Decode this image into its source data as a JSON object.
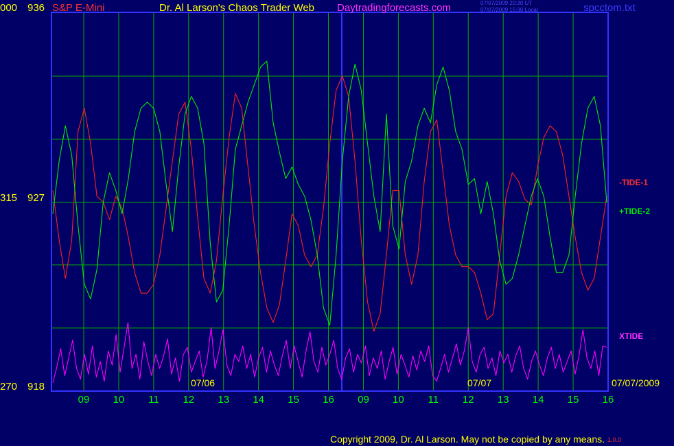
{
  "header": {
    "axis_top_left": "000",
    "price_top": "936",
    "instrument": "S&P E-Mini",
    "author": "Dr. Al Larson's Chaos Trader Web",
    "site": "Daytradingforecasts.com",
    "timestamp_ut": "07/07/2009 20:30 UT",
    "timestamp_local": "07/07/2009 15:30 Local",
    "filename": "spcctom.txt"
  },
  "left_axis": {
    "mid_label": "315",
    "mid_price": "927",
    "bottom_label": "270",
    "bottom_price": "918"
  },
  "right_labels": {
    "tide1": "-TIDE-1",
    "tide2": "+TIDE-2",
    "xtide": "XTIDE"
  },
  "footer": {
    "copyright": "Copyright 2009, Dr. Al Larson. May not be copied by any means.",
    "stamp": "1.0.0"
  },
  "colors": {
    "background": "#000066",
    "grid": "#00aa00",
    "tide1": "#ff2020",
    "tide2": "#00ee00",
    "xtide": "#ff00ff",
    "session_divider": "#3333ff",
    "axis_text": "#ffff00",
    "hour_labels": "#00ff00"
  },
  "chart_data": {
    "type": "line",
    "x_hour_labels": [
      "09",
      "10",
      "11",
      "12",
      "13",
      "14",
      "15",
      "16",
      "09",
      "10",
      "11",
      "12",
      "13",
      "14",
      "15",
      "16"
    ],
    "date_labels": [
      "07/06",
      "07/07",
      "07/07/2009"
    ],
    "y_price_ticks": [
      936,
      927,
      918
    ],
    "ylim": [
      918,
      936
    ],
    "grid": true,
    "series": [
      {
        "name": "-TIDE-1",
        "color": "#ff2020",
        "values": [
          0.52,
          0.35,
          0.22,
          0.35,
          0.72,
          0.8,
          0.68,
          0.5,
          0.48,
          0.42,
          0.5,
          0.46,
          0.36,
          0.24,
          0.17,
          0.17,
          0.2,
          0.3,
          0.46,
          0.62,
          0.78,
          0.82,
          0.66,
          0.43,
          0.22,
          0.17,
          0.28,
          0.5,
          0.7,
          0.85,
          0.8,
          0.6,
          0.4,
          0.24,
          0.12,
          0.07,
          0.13,
          0.28,
          0.44,
          0.4,
          0.3,
          0.26,
          0.3,
          0.46,
          0.68,
          0.86,
          0.91,
          0.84,
          0.62,
          0.35,
          0.14,
          0.04,
          0.1,
          0.3,
          0.52,
          0.52,
          0.3,
          0.2,
          0.3,
          0.55,
          0.72,
          0.76,
          0.58,
          0.4,
          0.3,
          0.26,
          0.26,
          0.24,
          0.17,
          0.08,
          0.1,
          0.3,
          0.5,
          0.58,
          0.55,
          0.49,
          0.47,
          0.6,
          0.7,
          0.74,
          0.72,
          0.64,
          0.5,
          0.36,
          0.24,
          0.18,
          0.22,
          0.36,
          0.5
        ]
      },
      {
        "name": "+TIDE-2",
        "color": "#00ee00",
        "values": [
          0.44,
          0.62,
          0.74,
          0.64,
          0.4,
          0.2,
          0.15,
          0.25,
          0.48,
          0.58,
          0.52,
          0.44,
          0.56,
          0.72,
          0.8,
          0.82,
          0.8,
          0.72,
          0.54,
          0.38,
          0.6,
          0.78,
          0.84,
          0.8,
          0.68,
          0.34,
          0.14,
          0.18,
          0.4,
          0.66,
          0.74,
          0.82,
          0.88,
          0.94,
          0.96,
          0.75,
          0.65,
          0.56,
          0.6,
          0.54,
          0.5,
          0.42,
          0.3,
          0.12,
          0.06,
          0.3,
          0.62,
          0.84,
          0.95,
          0.86,
          0.68,
          0.5,
          0.38,
          0.78,
          0.4,
          0.32,
          0.55,
          0.62,
          0.74,
          0.8,
          0.75,
          0.88,
          0.94,
          0.86,
          0.72,
          0.66,
          0.54,
          0.56,
          0.44,
          0.55,
          0.44,
          0.28,
          0.2,
          0.22,
          0.3,
          0.4,
          0.5,
          0.56,
          0.5,
          0.36,
          0.24,
          0.24,
          0.3,
          0.5,
          0.68,
          0.8,
          0.84,
          0.74,
          0.48
        ]
      },
      {
        "name": "XTIDE",
        "color": "#ff00ff",
        "values": [
          0.1,
          0.32,
          0.58,
          0.2,
          0.45,
          0.7,
          0.3,
          0.15,
          0.5,
          0.22,
          0.62,
          0.18,
          0.4,
          0.12,
          0.55,
          0.35,
          0.78,
          0.25,
          0.6,
          0.95,
          0.3,
          0.5,
          0.15,
          0.68,
          0.4,
          0.2,
          0.5,
          0.3,
          0.48,
          0.72,
          0.22,
          0.45,
          0.12,
          0.5,
          0.6,
          0.25,
          0.4,
          0.55,
          0.18,
          0.42,
          0.88,
          0.3,
          0.55,
          0.85,
          0.35,
          0.2,
          0.5,
          0.4,
          0.62,
          0.3,
          0.5,
          0.18,
          0.45,
          0.6,
          0.25,
          0.55,
          0.35,
          0.2,
          0.48,
          0.7,
          0.3,
          0.62,
          0.4,
          0.18,
          0.55,
          0.82,
          0.4,
          0.25,
          0.6,
          0.35,
          0.5,
          0.7,
          0.3,
          0.15,
          0.45,
          0.58,
          0.25,
          0.5,
          0.38,
          0.62,
          0.2,
          0.45,
          0.3,
          0.55,
          0.15,
          0.4,
          0.6,
          0.22,
          0.5,
          0.35,
          0.18,
          0.48,
          0.28,
          0.55,
          0.4,
          0.62,
          0.2,
          0.12,
          0.3,
          0.5,
          0.25,
          0.45,
          0.65,
          0.35,
          0.55,
          0.88,
          0.4,
          0.25,
          0.5,
          0.6,
          0.3,
          0.45,
          0.2,
          0.55,
          0.38,
          0.5,
          0.25,
          0.48,
          0.62,
          0.3,
          0.15,
          0.4,
          0.55,
          0.35,
          0.2,
          0.45,
          0.6,
          0.3,
          0.5,
          0.25,
          0.4,
          0.55,
          0.22,
          0.48,
          0.85,
          0.45,
          0.3,
          0.55,
          0.2,
          0.62,
          0.6
        ]
      }
    ]
  }
}
